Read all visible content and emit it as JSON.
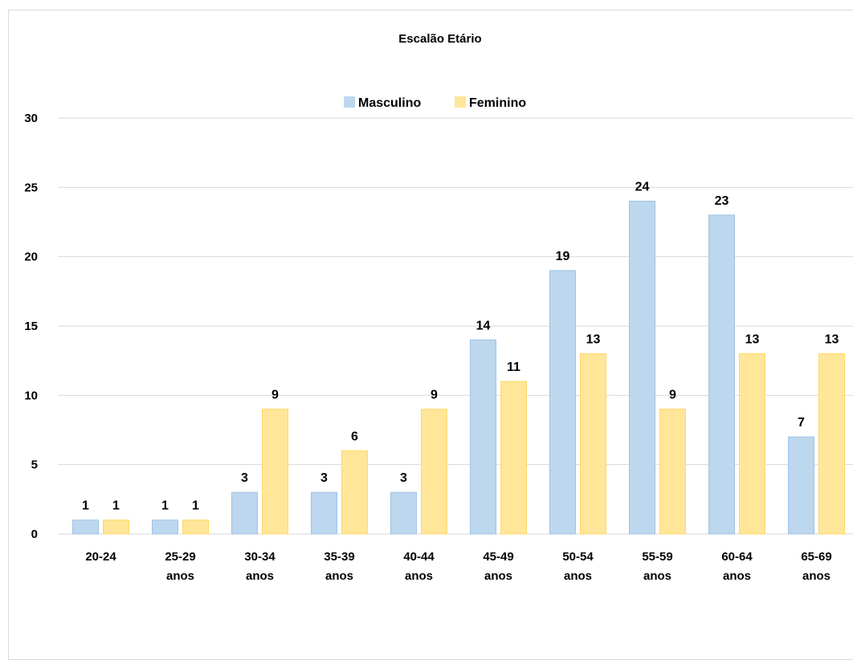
{
  "chart_data": {
    "type": "bar",
    "title": "Escalão Etário",
    "xlabel": "",
    "ylabel": "",
    "ylim": [
      0,
      30
    ],
    "yticks": [
      "0",
      "5",
      "10",
      "15",
      "20",
      "25",
      "30"
    ],
    "grid": true,
    "legend_position": "top",
    "categories": [
      [
        "20-24",
        ""
      ],
      [
        "25-29",
        "anos"
      ],
      [
        "30-34",
        "anos"
      ],
      [
        "35-39",
        "anos"
      ],
      [
        "40-44",
        "anos"
      ],
      [
        "45-49",
        "anos"
      ],
      [
        "50-54",
        "anos"
      ],
      [
        "55-59",
        "anos"
      ],
      [
        "60-64",
        "anos"
      ],
      [
        "65-69",
        "anos"
      ]
    ],
    "series": [
      {
        "name": "Masculino",
        "color": "#bdd7ee",
        "values": [
          1,
          1,
          3,
          3,
          3,
          14,
          19,
          24,
          23,
          7
        ]
      },
      {
        "name": "Feminino",
        "color": "#ffe699",
        "values": [
          1,
          1,
          9,
          6,
          9,
          11,
          13,
          9,
          13,
          13
        ]
      }
    ]
  }
}
